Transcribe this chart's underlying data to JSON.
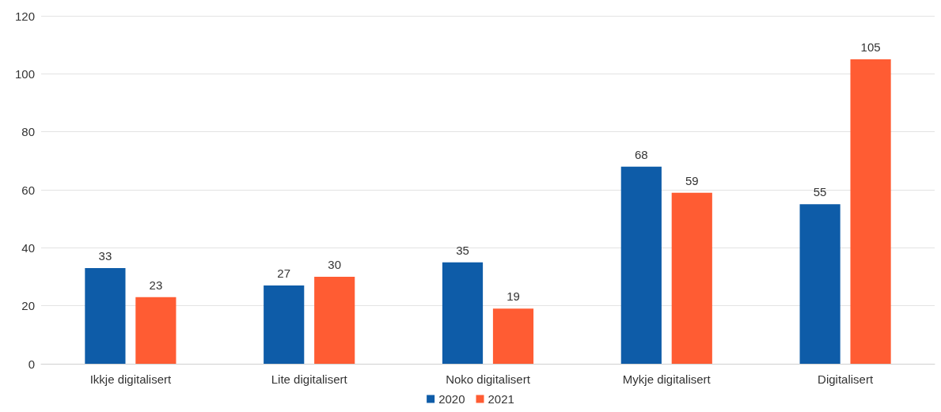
{
  "chart_data": {
    "type": "bar",
    "categories": [
      "Ikkje digitalisert",
      "Lite digitalisert",
      "Noko digitalisert",
      "Mykje digitalisert",
      "Digitalisert"
    ],
    "series": [
      {
        "name": "2020",
        "color": "#0e5ca8",
        "values": [
          33,
          27,
          35,
          68,
          55
        ]
      },
      {
        "name": "2021",
        "color": "#ff5c33",
        "values": [
          23,
          30,
          19,
          59,
          105
        ]
      }
    ],
    "ylim": [
      0,
      120
    ],
    "yticks": [
      0,
      20,
      40,
      60,
      80,
      100,
      120
    ],
    "grid": "y",
    "legend": "bottom",
    "data_labels": true
  }
}
